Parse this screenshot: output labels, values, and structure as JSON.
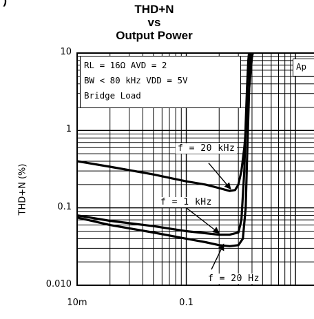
{
  "header": {
    "cut_text": "(  ) "
  },
  "chart_data": {
    "type": "line",
    "title": [
      "THD+N",
      "vs",
      "Output Power"
    ],
    "xlabel": "",
    "ylabel": "THD+N (%)",
    "xscale": "log",
    "yscale": "log",
    "xlim": [
      0.01,
      1.0
    ],
    "ylim": [
      0.01,
      10
    ],
    "grid": true,
    "x_ticks": [
      {
        "v": 0.01,
        "label": "10m"
      },
      {
        "v": 0.1,
        "label": "0.1"
      }
    ],
    "y_ticks": [
      {
        "v": 10,
        "label": "10"
      },
      {
        "v": 1,
        "label": "1"
      },
      {
        "v": 0.1,
        "label": "0.1"
      },
      {
        "v": 0.01,
        "label": "0.010"
      }
    ],
    "conditions": [
      "RL = 16Ω   AVD = 2",
      "BW < 80 kHz   VDD = 5V",
      "Bridge Load"
    ],
    "clipped_label": "Ap",
    "series": [
      {
        "name": "f = 20 kHz",
        "x": [
          0.01,
          0.02,
          0.05,
          0.1,
          0.15,
          0.2,
          0.25,
          0.28,
          0.3,
          0.32,
          0.34,
          0.36,
          0.38,
          0.4,
          0.42
        ],
        "y": [
          0.4,
          0.34,
          0.27,
          0.22,
          0.2,
          0.18,
          0.165,
          0.17,
          0.2,
          0.3,
          0.6,
          1.5,
          4,
          9,
          12
        ]
      },
      {
        "name": "f = 1 kHz",
        "x": [
          0.01,
          0.02,
          0.05,
          0.1,
          0.15,
          0.2,
          0.25,
          0.3,
          0.32,
          0.34,
          0.35,
          0.36,
          0.37,
          0.38
        ],
        "y": [
          0.08,
          0.068,
          0.058,
          0.05,
          0.047,
          0.045,
          0.045,
          0.048,
          0.07,
          0.3,
          1.2,
          3.5,
          8,
          12
        ]
      },
      {
        "name": "f = 20 Hz",
        "x": [
          0.01,
          0.02,
          0.05,
          0.1,
          0.15,
          0.2,
          0.25,
          0.3,
          0.33,
          0.35,
          0.36,
          0.37,
          0.38,
          0.39
        ],
        "y": [
          0.075,
          0.06,
          0.048,
          0.04,
          0.036,
          0.033,
          0.032,
          0.033,
          0.04,
          0.1,
          0.4,
          1.5,
          5,
          12
        ]
      }
    ],
    "annotations": [
      {
        "text": "f = 20 kHz",
        "series": 0,
        "point": [
          0.255,
          0.175
        ],
        "from": [
          0.16,
          0.38
        ]
      },
      {
        "text": "f = 1 kHz",
        "series": 1,
        "point": [
          0.2,
          0.047
        ],
        "from": [
          0.1,
          0.1
        ]
      },
      {
        "text": "f = 20 Hz",
        "series": 2,
        "point": [
          0.22,
          0.034
        ],
        "from": [
          0.17,
          0.016
        ]
      }
    ]
  }
}
